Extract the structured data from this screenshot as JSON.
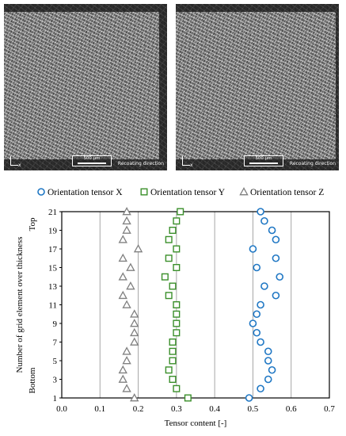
{
  "micrographs": [
    {
      "axis_x": "x",
      "axis_z": "z",
      "scale_label": "500 µm",
      "recoat_label": "Recoating direction"
    },
    {
      "axis_x": "x",
      "axis_z": "z",
      "scale_label": "500 µm",
      "recoat_label": "Recoating direction"
    }
  ],
  "chart_data": {
    "type": "scatter",
    "xlabel": "Tensor content [-]",
    "ylabel": "Number of grid element over thickness",
    "y_end_labels": {
      "top": "Top",
      "bottom": "Bottom"
    },
    "xlim": [
      0,
      0.7
    ],
    "ylim": [
      1,
      21
    ],
    "x_ticks": [
      "0.0",
      "0.1",
      "0.2",
      "0.3",
      "0.4",
      "0.5",
      "0.6",
      "0.7"
    ],
    "x_tick_values": [
      0,
      0.1,
      0.2,
      0.3,
      0.4,
      0.5,
      0.6,
      0.7
    ],
    "y_ticks": [
      "1",
      "3",
      "5",
      "7",
      "9",
      "11",
      "13",
      "15",
      "17",
      "19",
      "21"
    ],
    "y_tick_values": [
      1,
      3,
      5,
      7,
      9,
      11,
      13,
      15,
      17,
      19,
      21
    ],
    "grid": "vertical",
    "legend_position": "top",
    "series": [
      {
        "name": "Orientation tensor X",
        "marker": "circle",
        "color": "#1f77c4",
        "x": [
          0.49,
          0.52,
          0.54,
          0.55,
          0.54,
          0.54,
          0.52,
          0.51,
          0.5,
          0.51,
          0.52,
          0.56,
          0.53,
          0.57,
          0.51,
          0.56,
          0.5,
          0.56,
          0.55,
          0.53,
          0.52
        ],
        "y": [
          1,
          2,
          3,
          4,
          5,
          6,
          7,
          8,
          9,
          10,
          11,
          12,
          13,
          14,
          15,
          16,
          17,
          18,
          19,
          20,
          21
        ]
      },
      {
        "name": "Orientation tensor Y",
        "marker": "square",
        "color": "#3a8f2a",
        "x": [
          0.33,
          0.3,
          0.29,
          0.28,
          0.29,
          0.29,
          0.29,
          0.3,
          0.3,
          0.3,
          0.3,
          0.28,
          0.29,
          0.27,
          0.3,
          0.28,
          0.3,
          0.28,
          0.29,
          0.3,
          0.31
        ],
        "y": [
          1,
          2,
          3,
          4,
          5,
          6,
          7,
          8,
          9,
          10,
          11,
          12,
          13,
          14,
          15,
          16,
          17,
          18,
          19,
          20,
          21
        ]
      },
      {
        "name": "Orientation tensor Z",
        "marker": "triangle",
        "color": "#808080",
        "x": [
          0.19,
          0.17,
          0.16,
          0.16,
          0.17,
          0.17,
          0.19,
          0.19,
          0.19,
          0.19,
          0.17,
          0.16,
          0.18,
          0.16,
          0.18,
          0.16,
          0.2,
          0.16,
          0.17,
          0.17,
          0.17
        ],
        "y": [
          1,
          2,
          3,
          4,
          5,
          6,
          7,
          8,
          9,
          10,
          11,
          12,
          13,
          14,
          15,
          16,
          17,
          18,
          19,
          20,
          21
        ]
      }
    ]
  }
}
